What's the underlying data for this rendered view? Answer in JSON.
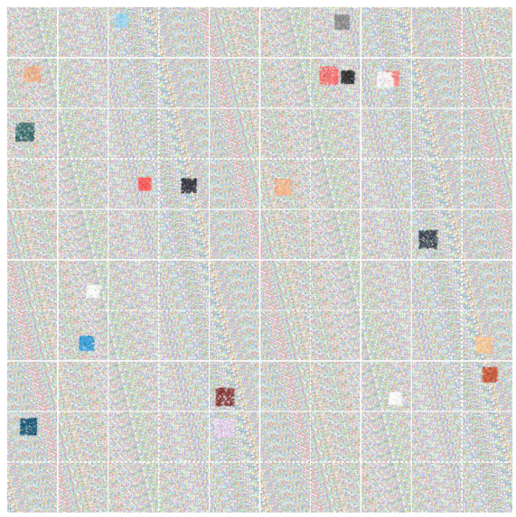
{
  "image": {
    "description_free": true,
    "grid": {
      "rows": 10,
      "cols": 10,
      "line_color": "#ffffff",
      "line_style": "solid-and-dotted"
    },
    "noise": {
      "palette": [
        "#f2a6a6",
        "#a6c7f2",
        "#c9f2a6",
        "#e3b6f0",
        "#b0b0b0",
        "#f7e7a6",
        "#9fe6e0",
        "#d9d9d9"
      ],
      "background_tint": "#cbbcd4"
    },
    "patches": [
      {
        "cell": [
          0,
          2
        ],
        "color": "#9fd6f0"
      },
      {
        "cell": [
          0,
          6
        ],
        "color": "#8c8c8c"
      },
      {
        "cell": [
          1,
          0
        ],
        "color": "#f0b48c"
      },
      {
        "cell": [
          1,
          6
        ],
        "color": "#ff6e6e"
      },
      {
        "cell": [
          1,
          6
        ],
        "color": "#3a3a3a"
      },
      {
        "cell": [
          1,
          7
        ],
        "color": "#ff8a8a"
      },
      {
        "cell": [
          1,
          7
        ],
        "color": "#ffffff"
      },
      {
        "cell": [
          2,
          0
        ],
        "color": "#3c6e6e"
      },
      {
        "cell": [
          3,
          2
        ],
        "color": "#ff6464"
      },
      {
        "cell": [
          3,
          3
        ],
        "color": "#3c3c46"
      },
      {
        "cell": [
          3,
          5
        ],
        "color": "#ffb48c"
      },
      {
        "cell": [
          4,
          8
        ],
        "color": "#3c4650"
      },
      {
        "cell": [
          5,
          1
        ],
        "color": "#ffffff"
      },
      {
        "cell": [
          6,
          1
        ],
        "color": "#3c9fd6"
      },
      {
        "cell": [
          6,
          9
        ],
        "color": "#ffc896"
      },
      {
        "cell": [
          7,
          4
        ],
        "color": "#8c3c3c"
      },
      {
        "cell": [
          7,
          7
        ],
        "color": "#ffffff"
      },
      {
        "cell": [
          7,
          9
        ],
        "color": "#c85a3c"
      },
      {
        "cell": [
          8,
          0
        ],
        "color": "#1e5a78"
      },
      {
        "cell": [
          8,
          4
        ],
        "color": "#e6d2f0"
      }
    ]
  }
}
